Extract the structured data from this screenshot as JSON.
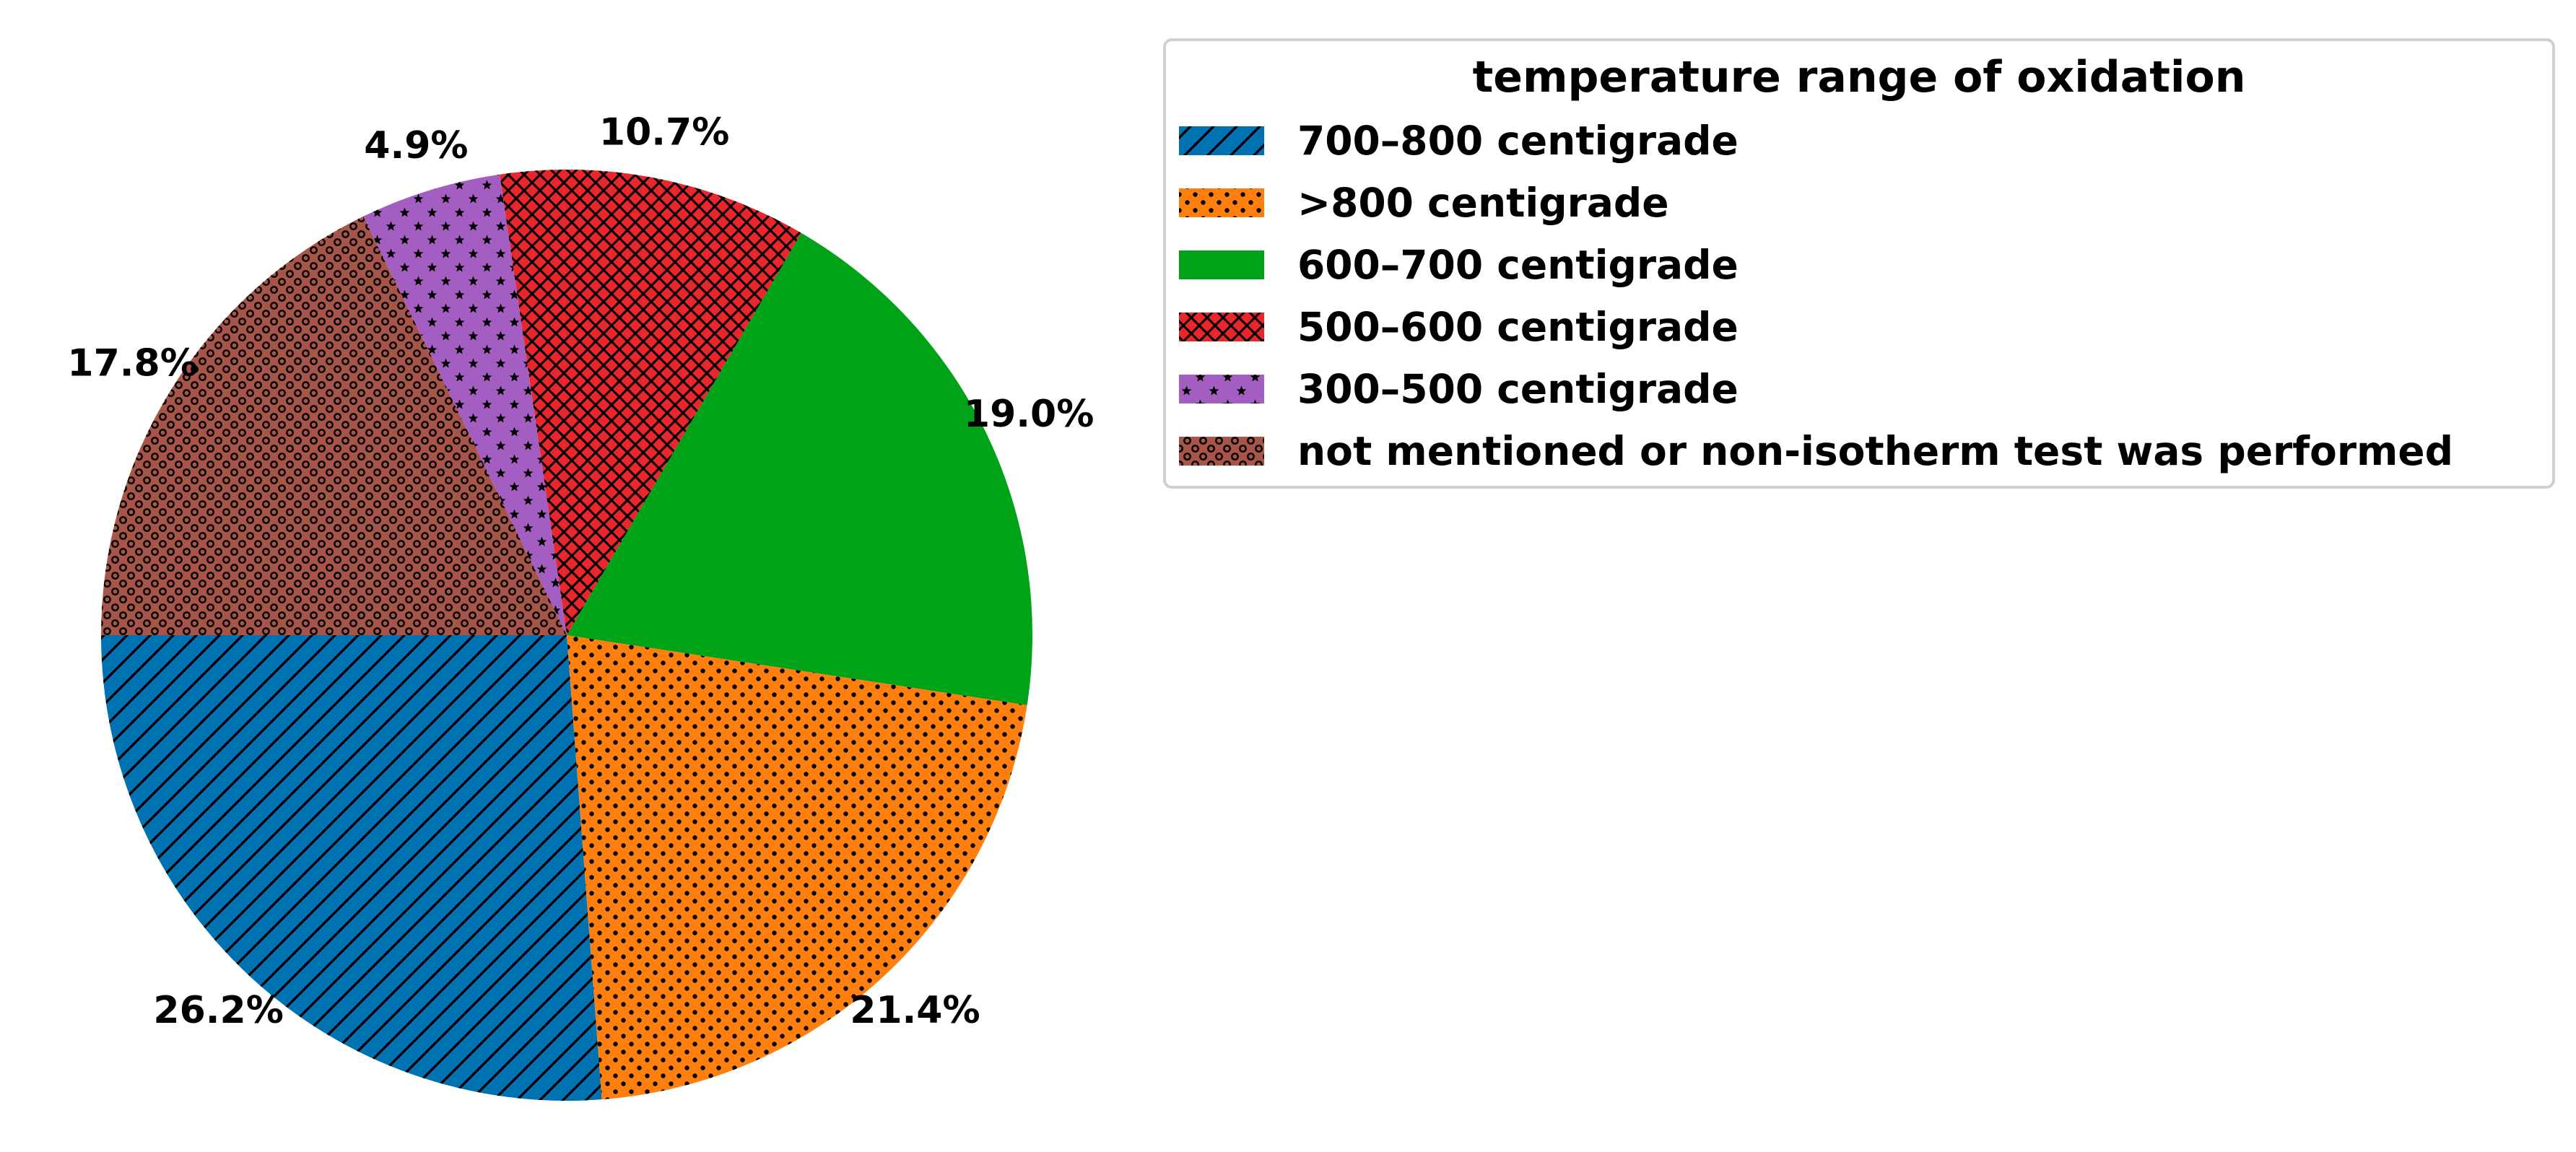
{
  "chart_data": {
    "type": "pie",
    "legend_title": "temperature range of oxidation",
    "legend_position": "top-right",
    "start_angle_deg": 180,
    "direction": "counterclockwise",
    "slices": [
      {
        "label": "700–800 centigrade",
        "value": 26.2,
        "pct_label": "26.2%",
        "color": "#0072b2",
        "hatch": "diagonal"
      },
      {
        "label": ">800 centigrade",
        "value": 21.4,
        "pct_label": "21.4%",
        "color": "#ff7f0e",
        "hatch": "dots"
      },
      {
        "label": "600–700 centigrade",
        "value": 19.0,
        "pct_label": "19.0%",
        "color": "#00a318",
        "hatch": "none"
      },
      {
        "label": "500–600 centigrade",
        "value": 10.7,
        "pct_label": "10.7%",
        "color": "#e8262b",
        "hatch": "crosshatch"
      },
      {
        "label": "300–500 centigrade",
        "value": 4.9,
        "pct_label": "4.9%",
        "color": "#a45ec2",
        "hatch": "stars"
      },
      {
        "label": "not mentioned or non-isotherm test was performed",
        "value": 17.8,
        "pct_label": "17.8%",
        "color": "#a65548",
        "hatch": "circles"
      }
    ]
  }
}
